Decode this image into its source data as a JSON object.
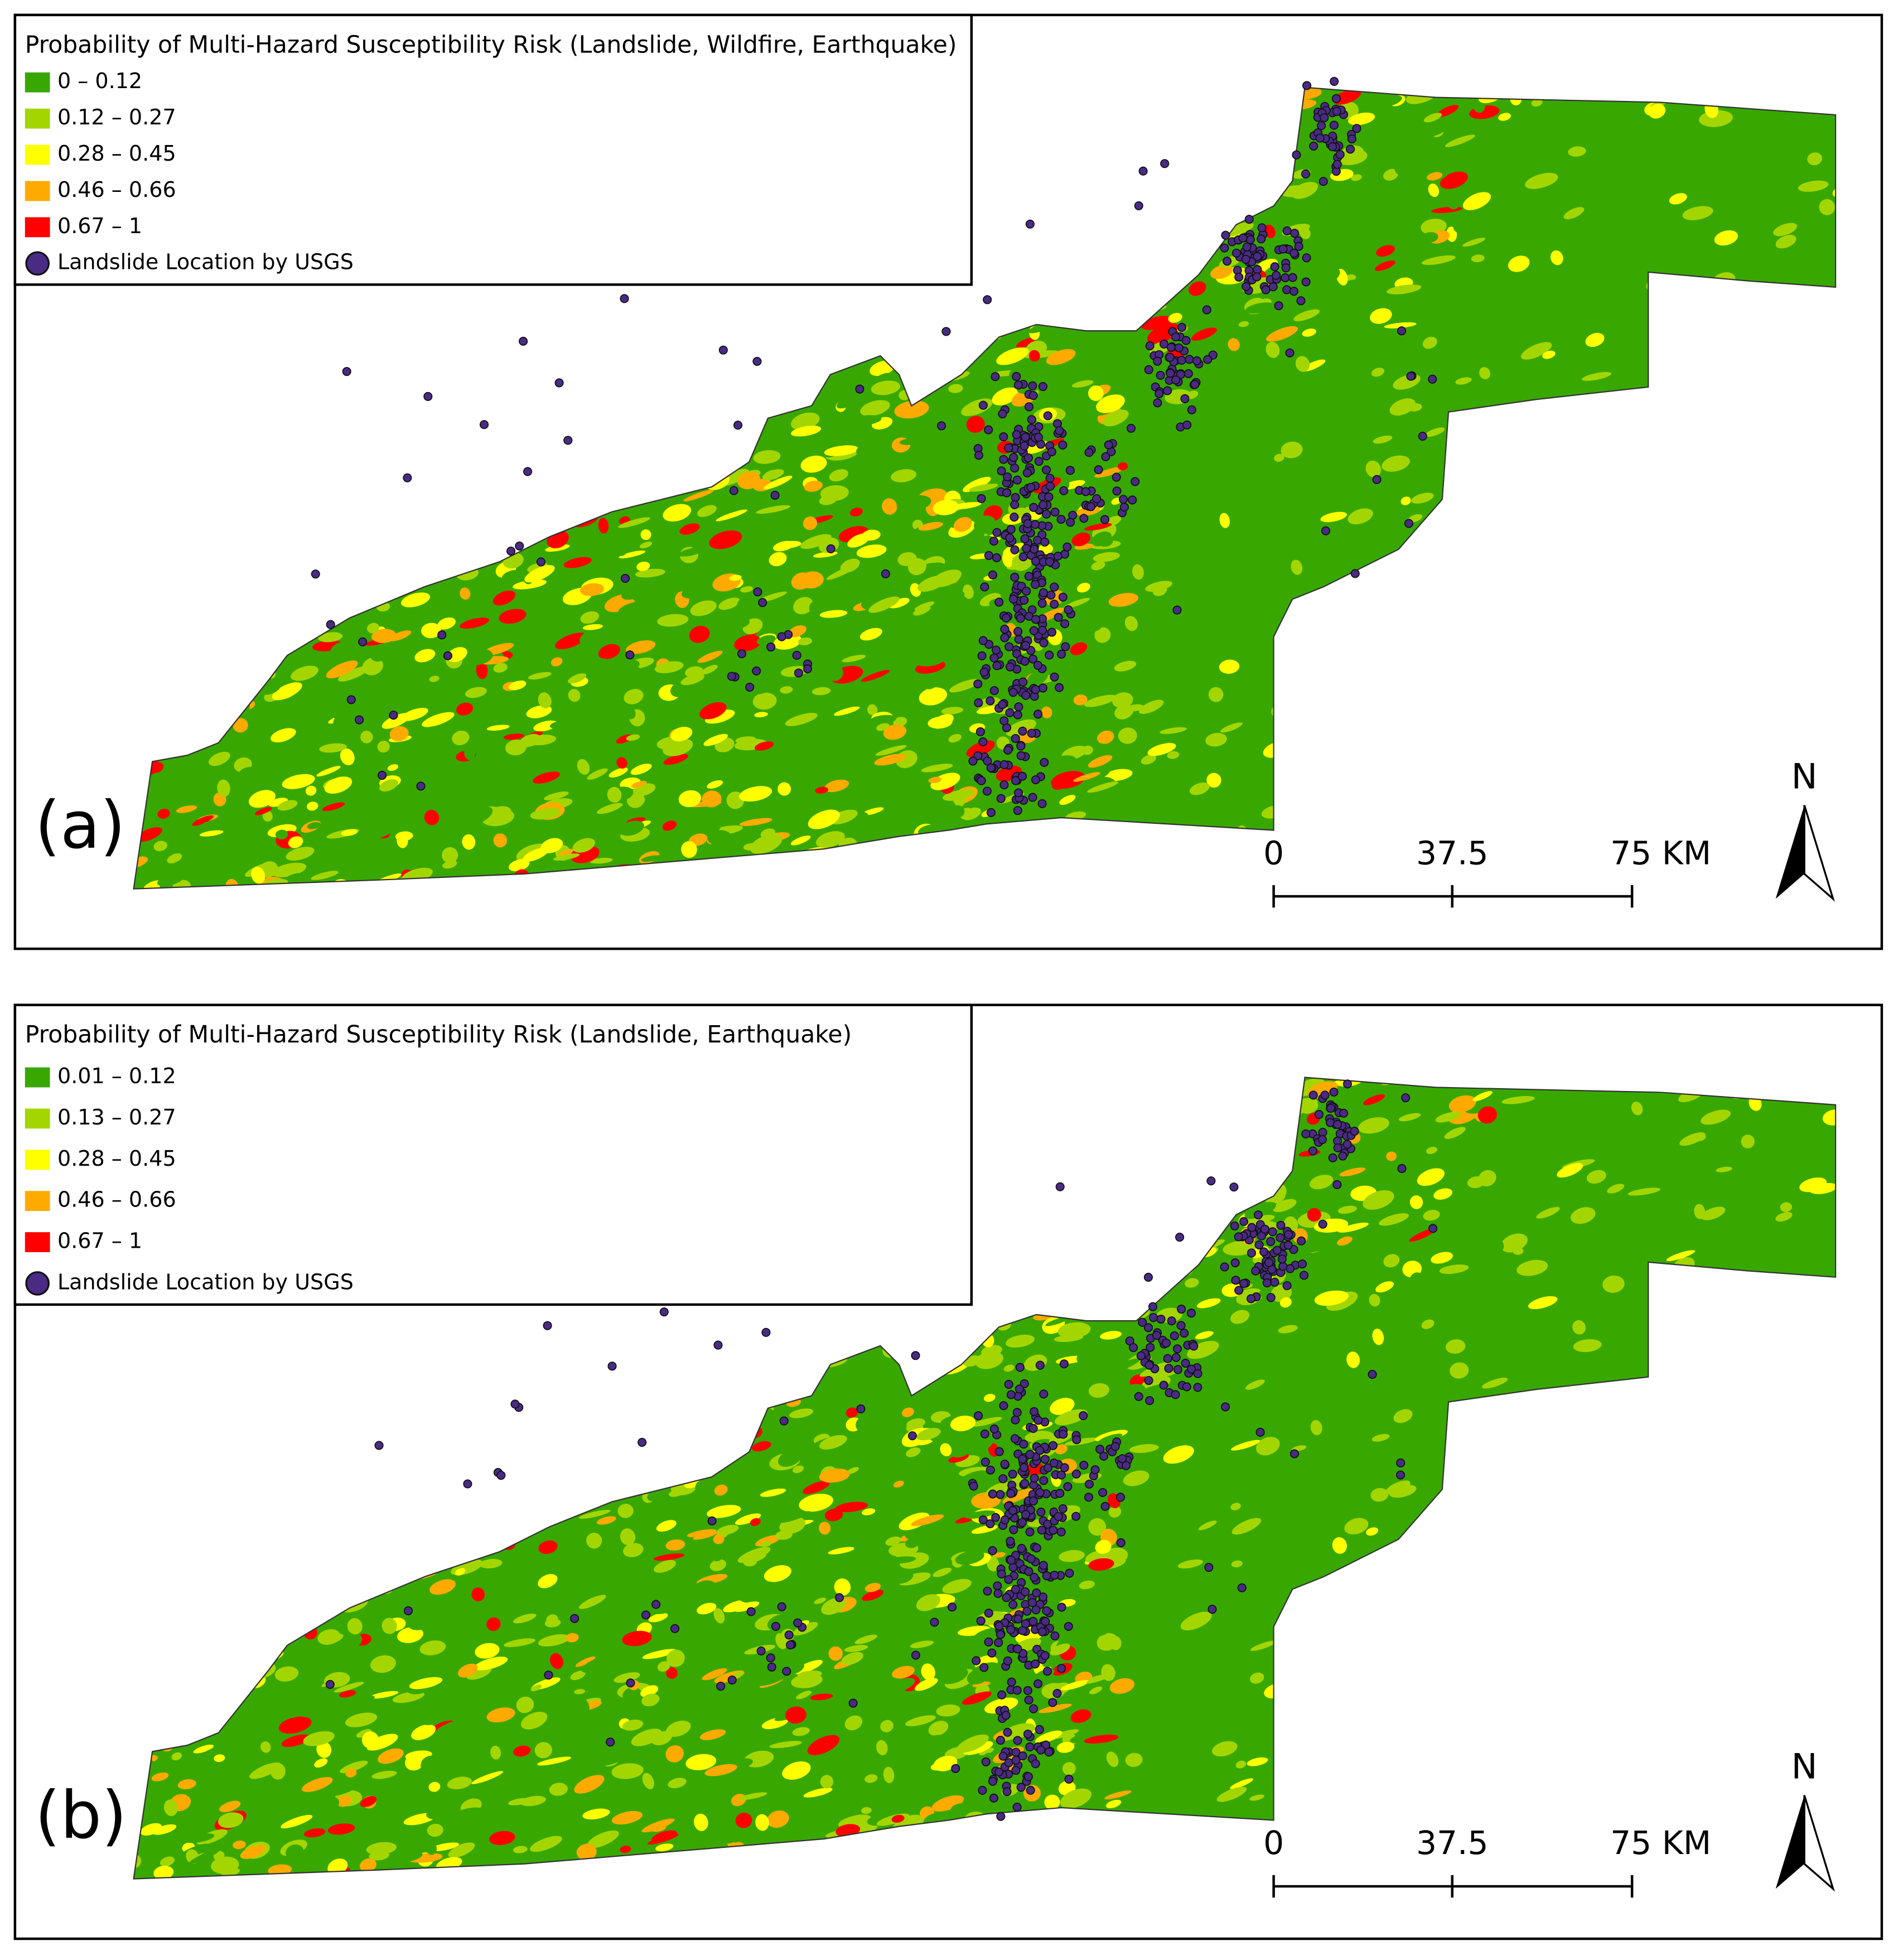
{
  "panels": [
    {
      "panel_label": "(a)",
      "legend": {
        "title": "Probability of Multi-Hazard Susceptibility Risk (Landslide, Wildfire, Earthquake)",
        "items": [
          {
            "label": "0 – 0.12",
            "color": "#38a800"
          },
          {
            "label": "0.12 – 0.27",
            "color": "#a3d600"
          },
          {
            "label": "0.28 – 0.45",
            "color": "#ffff00"
          },
          {
            "label": "0.46 – 0.66",
            "color": "#ffaa00"
          },
          {
            "label": "0.67 – 1",
            "color": "#ff0000"
          }
        ],
        "point_label": "Landslide Location by USGS",
        "point_color": "#4b2a86"
      },
      "scale_bar": {
        "labels": [
          "0",
          "37.5",
          "75 KM"
        ]
      },
      "north": "N"
    },
    {
      "panel_label": "(b)",
      "legend": {
        "title": "Probability of Multi-Hazard Susceptibility Risk (Landslide, Earthquake)",
        "items": [
          {
            "label": "0.01 – 0.12",
            "color": "#38a800"
          },
          {
            "label": "0.13 – 0.27",
            "color": "#a3d600"
          },
          {
            "label": "0.28 – 0.45",
            "color": "#ffff00"
          },
          {
            "label": "0.46 – 0.66",
            "color": "#ffaa00"
          },
          {
            "label": "0.67 – 1",
            "color": "#ff0000"
          }
        ],
        "point_label": "Landslide Location by USGS",
        "point_color": "#4b2a86"
      },
      "scale_bar": {
        "labels": [
          "0",
          "37.5",
          "75 KM"
        ]
      },
      "north": "N"
    }
  ]
}
